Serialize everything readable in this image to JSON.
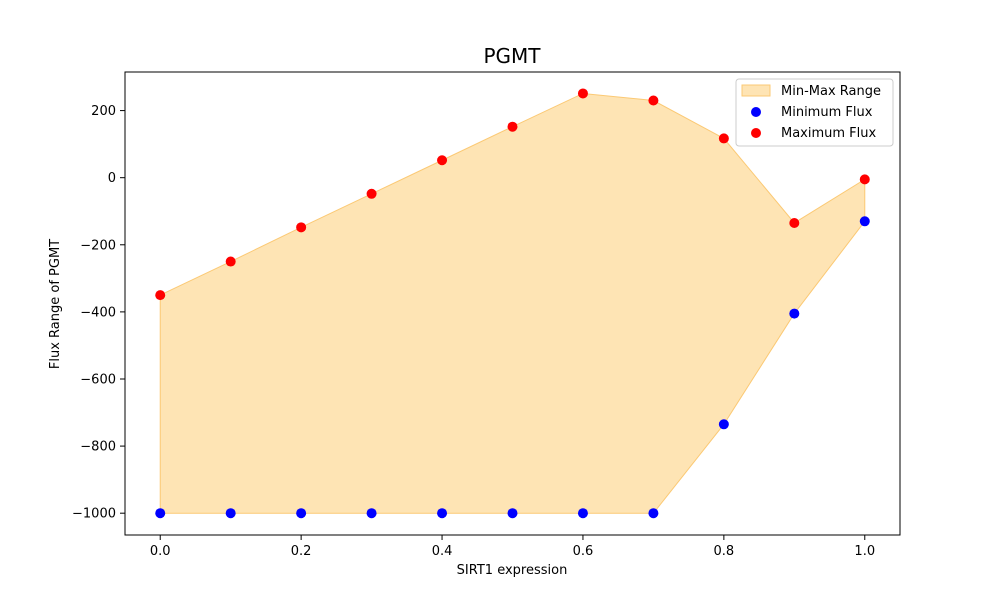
{
  "chart_data": {
    "type": "scatter",
    "title": "PGMT",
    "xlabel": "SIRT1 expression",
    "ylabel": "Flux Range of PGMT",
    "xlim": [
      -0.05,
      1.05
    ],
    "ylim": [
      -1065,
      315
    ],
    "x_ticks": [
      0.0,
      0.2,
      0.4,
      0.6,
      0.8,
      1.0
    ],
    "x_tick_labels": [
      "0.0",
      "0.2",
      "0.4",
      "0.6",
      "0.8",
      "1.0"
    ],
    "y_ticks": [
      -1000,
      -800,
      -600,
      -400,
      -200,
      0,
      200
    ],
    "y_tick_labels": [
      "−1000",
      "−800",
      "−600",
      "−400",
      "−200",
      "0",
      "200"
    ],
    "grid": false,
    "legend_position": "top-right",
    "x": [
      0.0,
      0.1,
      0.2,
      0.3,
      0.4,
      0.5,
      0.6,
      0.7,
      0.8,
      0.9,
      1.0
    ],
    "series": [
      {
        "name": "Minimum Flux",
        "color": "#0000ff",
        "values": [
          -1000,
          -1000,
          -1000,
          -1000,
          -1000,
          -1000,
          -1000,
          -1000,
          -735,
          -405,
          -130
        ]
      },
      {
        "name": "Maximum Flux",
        "color": "#ff0000",
        "values": [
          -350,
          -250,
          -148,
          -48,
          52,
          152,
          251,
          230,
          117,
          -135,
          -5
        ]
      }
    ],
    "fill": {
      "name": "Min-Max Range",
      "color": "#fdd58c",
      "edge_color": "#fbc974"
    }
  }
}
